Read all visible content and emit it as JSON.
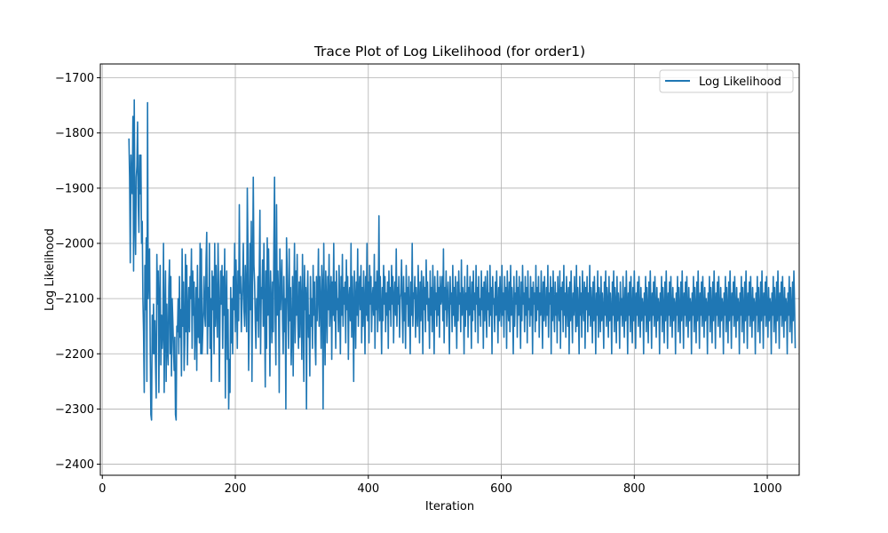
{
  "chart_data": {
    "type": "line",
    "title": "Trace Plot of Log Likelihood (for order1)",
    "xlabel": "Iteration",
    "ylabel": "Log Likelihood",
    "xlim": [
      -3,
      1048
    ],
    "ylim": [
      -2420,
      -1675
    ],
    "xticks": [
      0,
      200,
      400,
      600,
      800,
      1000
    ],
    "yticks": [
      -2400,
      -2300,
      -2200,
      -2100,
      -2000,
      -1900,
      -1800,
      -1700
    ],
    "grid": true,
    "legend": "top-right",
    "x_start": 40,
    "x_step": 1,
    "series": [
      {
        "name": "Log Likelihood",
        "color": "#1f77b4",
        "values": [
          -1810,
          -1880,
          -2035,
          -1840,
          -1900,
          -1910,
          -1770,
          -2050,
          -1740,
          -1960,
          -2020,
          -1880,
          -1860,
          -1780,
          -1930,
          -1980,
          -1840,
          -1910,
          -1840,
          -2000,
          -1960,
          -2100,
          -2160,
          -2270,
          -2040,
          -2120,
          -1990,
          -2250,
          -1745,
          -2100,
          -2050,
          -2010,
          -2190,
          -2310,
          -2320,
          -2130,
          -2200,
          -2110,
          -2200,
          -2140,
          -2220,
          -2280,
          -2020,
          -2110,
          -2050,
          -2270,
          -2100,
          -2040,
          -2220,
          -2130,
          -2190,
          -2160,
          -2000,
          -2270,
          -2140,
          -2050,
          -2250,
          -2110,
          -2190,
          -2220,
          -2080,
          -2030,
          -2200,
          -2060,
          -2240,
          -2100,
          -2140,
          -2190,
          -2230,
          -2170,
          -2310,
          -2320,
          -2150,
          -2160,
          -2100,
          -2200,
          -2060,
          -2170,
          -2120,
          -2240,
          -2010,
          -2150,
          -2070,
          -2230,
          -2180,
          -2020,
          -2160,
          -2040,
          -2220,
          -2130,
          -2080,
          -2160,
          -2060,
          -2100,
          -2010,
          -2190,
          -2050,
          -2130,
          -2070,
          -2210,
          -2150,
          -2080,
          -2230,
          -2040,
          -2170,
          -2100,
          -2180,
          -2000,
          -2200,
          -2010,
          -2200,
          -2160,
          -2120,
          -2060,
          -2130,
          -2150,
          -2030,
          -1980,
          -2200,
          -2080,
          -2150,
          -2000,
          -2190,
          -2100,
          -2250,
          -2050,
          -2120,
          -2060,
          -2200,
          -2000,
          -2150,
          -2040,
          -2120,
          -2170,
          -2000,
          -2080,
          -2250,
          -2120,
          -2050,
          -2110,
          -2040,
          -2190,
          -2060,
          -2130,
          -2010,
          -2280,
          -2100,
          -2050,
          -2210,
          -2120,
          -2300,
          -2210,
          -2270,
          -2080,
          -2180,
          -2100,
          -2200,
          -2060,
          -2120,
          -2000,
          -2160,
          -2030,
          -2100,
          -2190,
          -2050,
          -2140,
          -1930,
          -2090,
          -2060,
          -2160,
          -2110,
          -2070,
          -2000,
          -2120,
          -2150,
          -2040,
          -2100,
          -2160,
          -1900,
          -2010,
          -2230,
          -2140,
          -2000,
          -2120,
          -1960,
          -2250,
          -2060,
          -1880,
          -2040,
          -2070,
          -2140,
          -2190,
          -2100,
          -2140,
          -2060,
          -2170,
          -2050,
          -1940,
          -2200,
          -2080,
          -2100,
          -2030,
          -2150,
          -2000,
          -2120,
          -2260,
          -2050,
          -2190,
          -1990,
          -2130,
          -2010,
          -2110,
          -2240,
          -2050,
          -2110,
          -2180,
          -2070,
          -2160,
          -2000,
          -1880,
          -2140,
          -2220,
          -1930,
          -2130,
          -2050,
          -2100,
          -2270,
          -2010,
          -2120,
          -2080,
          -2030,
          -2140,
          -2200,
          -2060,
          -2160,
          -2100,
          -2300,
          -1990,
          -2050,
          -2120,
          -2190,
          -2010,
          -2140,
          -2080,
          -2220,
          -2160,
          -2060,
          -2240,
          -2100,
          -2000,
          -2180,
          -2050,
          -2130,
          -2020,
          -2140,
          -2190,
          -2070,
          -2170,
          -2060,
          -2110,
          -2210,
          -2020,
          -2130,
          -2250,
          -2040,
          -2120,
          -2080,
          -2300,
          -2100,
          -2050,
          -2170,
          -2130,
          -2240,
          -2060,
          -2150,
          -2100,
          -2190,
          -2040,
          -2130,
          -2070,
          -2180,
          -2220,
          -2060,
          -2140,
          -2090,
          -2010,
          -2150,
          -2060,
          -2110,
          -2190,
          -2040,
          -2080,
          -2300,
          -2000,
          -2130,
          -2220,
          -2050,
          -2110,
          -2180,
          -2060,
          -2120,
          -2020,
          -2150,
          -2100,
          -2060,
          -2210,
          -2070,
          -2130,
          -2000,
          -2140,
          -2070,
          -2190,
          -2050,
          -2120,
          -2100,
          -2160,
          -2040,
          -2110,
          -2200,
          -2060,
          -2130,
          -2020,
          -2150,
          -2080,
          -2110,
          -2070,
          -2180,
          -2030,
          -2120,
          -2060,
          -2210,
          -2100,
          -2080,
          -2140,
          -2000,
          -2170,
          -2060,
          -2120,
          -2250,
          -2050,
          -2100,
          -2190,
          -2070,
          -2130,
          -2010,
          -2150,
          -2090,
          -2060,
          -2120,
          -2040,
          -2180,
          -2080,
          -2150,
          -2050,
          -2110,
          -2200,
          -2060,
          -2130,
          -2000,
          -2140,
          -2070,
          -2180,
          -2040,
          -2110,
          -2060,
          -2160,
          -2100,
          -2080,
          -2130,
          -2020,
          -2190,
          -2070,
          -2120,
          -2050,
          -2160,
          -2100,
          -1950,
          -2140,
          -2060,
          -2120,
          -2200,
          -2080,
          -2140,
          -2040,
          -2110,
          -2060,
          -2160,
          -2090,
          -2130,
          -2070,
          -2190,
          -2050,
          -2120,
          -2080,
          -2150,
          -2040,
          -2110,
          -2060,
          -2180,
          -2100,
          -2070,
          -2130,
          -2010,
          -2150,
          -2080,
          -2110,
          -2060,
          -2170,
          -2100,
          -2090,
          -2030,
          -2120,
          -2180,
          -2060,
          -2140,
          -2090,
          -2190,
          -2040,
          -2110,
          -2080,
          -2150,
          -2060,
          -2120,
          -2200,
          -2070,
          -2130,
          -2000,
          -2150,
          -2090,
          -2100,
          -2060,
          -2170,
          -2080,
          -2120,
          -2150,
          -2040,
          -2110,
          -2180,
          -2070,
          -2140,
          -2050,
          -2100,
          -2200,
          -2060,
          -2120,
          -2080,
          -2160,
          -2030,
          -2110,
          -2070,
          -2140,
          -2100,
          -2190,
          -2050,
          -2130,
          -2080,
          -2160,
          -2040,
          -2110,
          -2200,
          -2060,
          -2120,
          -2090,
          -2150,
          -2050,
          -2130,
          -2080,
          -2170,
          -2060,
          -2110,
          -2100,
          -2060,
          -2140,
          -2010,
          -2180,
          -2080,
          -2120,
          -2050,
          -2150,
          -2100,
          -2070,
          -2130,
          -2200,
          -2060,
          -2110,
          -2090,
          -2160,
          -2040,
          -2130,
          -2080,
          -2150,
          -2060,
          -2120,
          -2190,
          -2070,
          -2140,
          -2050,
          -2110,
          -2090,
          -2160,
          -2030,
          -2130,
          -2080,
          -2100,
          -2200,
          -2060,
          -2150,
          -2090,
          -2120,
          -2040,
          -2170,
          -2080,
          -2130,
          -2060,
          -2110,
          -2190,
          -2070,
          -2140,
          -2050,
          -2120,
          -2090,
          -2160,
          -2040,
          -2110,
          -2080,
          -2180,
          -2060,
          -2130,
          -2100,
          -2150,
          -2050,
          -2120,
          -2080,
          -2190,
          -2070,
          -2140,
          -2060,
          -2110,
          -2170,
          -2050,
          -2120,
          -2090,
          -2150,
          -2040,
          -2130,
          -2080,
          -2200,
          -2060,
          -2110,
          -2100,
          -2160,
          -2070,
          -2130,
          -2050,
          -2120,
          -2180,
          -2080,
          -2140,
          -2060,
          -2110,
          -2150,
          -2040,
          -2130,
          -2090,
          -2170,
          -2060,
          -2120,
          -2080,
          -2190,
          -2050,
          -2110,
          -2140,
          -2070,
          -2160,
          -2040,
          -2130,
          -2080,
          -2120,
          -2200,
          -2060,
          -2150,
          -2090,
          -2110,
          -2050,
          -2170,
          -2080,
          -2130,
          -2060,
          -2120,
          -2190,
          -2070,
          -2140,
          -2040,
          -2110,
          -2090,
          -2160,
          -2060,
          -2130,
          -2080,
          -2180,
          -2050,
          -2120,
          -2100,
          -2150,
          -2060,
          -2130,
          -2080,
          -2200,
          -2070,
          -2110,
          -2090,
          -2160,
          -2040,
          -2140,
          -2080,
          -2120,
          -2060,
          -2170,
          -2090,
          -2130,
          -2050,
          -2110,
          -2190,
          -2070,
          -2140,
          -2060,
          -2120,
          -2150,
          -2080,
          -2130,
          -2040,
          -2170,
          -2090,
          -2110,
          -2060,
          -2200,
          -2080,
          -2140,
          -2050,
          -2120,
          -2160,
          -2070,
          -2130,
          -2090,
          -2180,
          -2060,
          -2110,
          -2140,
          -2050,
          -2190,
          -2080,
          -2120,
          -2070,
          -2160,
          -2040,
          -2130,
          -2090,
          -2170,
          -2060,
          -2110,
          -2150,
          -2080,
          -2200,
          -2070,
          -2140,
          -2050,
          -2120,
          -2180,
          -2090,
          -2130,
          -2060,
          -2110,
          -2160,
          -2040,
          -2150,
          -2080,
          -2120,
          -2200,
          -2060,
          -2130,
          -2090,
          -2170,
          -2050,
          -2110,
          -2140,
          -2070,
          -2190,
          -2080,
          -2120,
          -2060,
          -2160,
          -2090,
          -2130,
          -2040,
          -2150,
          -2080,
          -2110,
          -2180,
          -2070,
          -2140,
          -2060,
          -2120,
          -2200,
          -2090,
          -2130,
          -2050,
          -2170,
          -2080,
          -2110,
          -2160,
          -2060,
          -2140,
          -2090,
          -2120,
          -2190,
          -2070,
          -2130,
          -2050,
          -2150,
          -2080,
          -2110,
          -2170,
          -2060,
          -2140,
          -2090,
          -2120,
          -2200,
          -2070,
          -2130,
          -2050,
          -2160,
          -2080,
          -2110,
          -2180,
          -2060,
          -2140,
          -2090,
          -2120,
          -2190,
          -2070,
          -2130,
          -2100,
          -2150,
          -2060,
          -2120,
          -2170,
          -2080,
          -2140,
          -2050,
          -2110,
          -2200,
          -2090,
          -2130,
          -2070,
          -2160,
          -2060,
          -2120,
          -2180,
          -2080,
          -2140,
          -2050,
          -2110,
          -2190,
          -2090,
          -2130,
          -2070,
          -2150,
          -2060,
          -2120,
          -2170,
          -2080,
          -2140,
          -2100,
          -2110,
          -2200,
          -2090,
          -2130,
          -2060,
          -2160,
          -2080,
          -2120,
          -2180,
          -2070,
          -2140,
          -2050,
          -2110,
          -2190,
          -2090,
          -2130,
          -2070,
          -2150,
          -2060,
          -2120,
          -2170,
          -2080,
          -2140,
          -2100,
          -2110,
          -2200,
          -2090,
          -2130,
          -2060,
          -2160,
          -2080,
          -2120,
          -2180,
          -2070,
          -2140,
          -2050,
          -2110,
          -2190,
          -2090,
          -2130,
          -2070,
          -2150,
          -2060,
          -2120,
          -2170,
          -2080,
          -2140,
          -2100,
          -2110,
          -2200,
          -2090,
          -2130,
          -2060,
          -2160,
          -2080,
          -2120,
          -2180,
          -2070,
          -2140,
          -2050,
          -2110,
          -2190,
          -2090,
          -2130,
          -2070,
          -2150,
          -2060,
          -2120,
          -2170,
          -2080,
          -2140,
          -2100,
          -2110,
          -2200,
          -2090,
          -2130,
          -2060,
          -2160,
          -2080,
          -2120,
          -2180,
          -2070,
          -2140,
          -2050,
          -2110,
          -2190,
          -2090,
          -2130,
          -2070,
          -2150,
          -2060,
          -2120,
          -2170,
          -2080,
          -2140,
          -2100,
          -2110,
          -2200,
          -2090,
          -2130,
          -2060,
          -2160,
          -2080,
          -2120,
          -2180,
          -2070,
          -2140,
          -2050,
          -2110,
          -2190,
          -2090,
          -2130,
          -2070,
          -2150,
          -2060,
          -2120,
          -2170,
          -2080,
          -2140,
          -2100,
          -2110,
          -2200,
          -2090,
          -2130,
          -2060,
          -2160,
          -2080,
          -2120,
          -2180,
          -2070,
          -2140,
          -2050,
          -2110,
          -2190,
          -2090,
          -2130,
          -2070,
          -2150,
          -2060,
          -2120,
          -2170,
          -2080,
          -2140,
          -2100,
          -2110,
          -2200,
          -2090,
          -2130,
          -2060,
          -2160,
          -2080,
          -2120,
          -2180,
          -2070,
          -2140,
          -2050,
          -2110,
          -2190,
          -2090,
          -2130,
          -2070,
          -2150,
          -2060,
          -2120,
          -2170,
          -2080,
          -2140,
          -2100,
          -2110,
          -2200,
          -2090,
          -2130,
          -2060,
          -2160,
          -2080,
          -2120,
          -2180,
          -2070,
          -2140,
          -2050,
          -2110,
          -2190,
          -2090,
          -2130,
          -2070,
          -2150,
          -2060,
          -2120,
          -2170,
          -2080,
          -2140,
          -2100,
          -2110,
          -2200,
          -2090,
          -2130,
          -2060,
          -2160,
          -2080,
          -2120,
          -2180,
          -2070,
          -2140,
          -2050,
          -2110,
          -2190,
          -2090,
          -2130,
          -2070,
          -2150,
          -2060,
          -2120,
          -2170,
          -2080,
          -2140,
          -2100,
          -2110,
          -2200,
          -2090,
          -2130,
          -2060,
          -2160,
          -2080,
          -2120,
          -2180,
          -2070,
          -2140,
          -2050,
          -2110,
          -2190
        ]
      }
    ]
  }
}
